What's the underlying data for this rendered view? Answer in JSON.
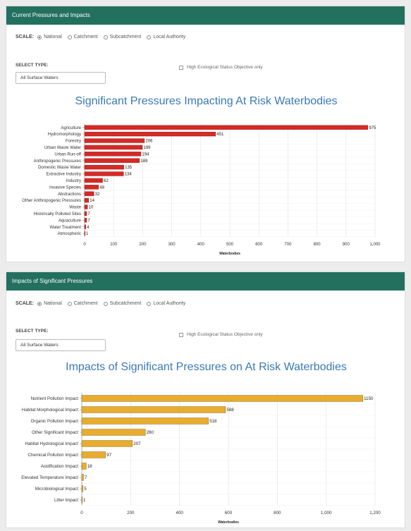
{
  "panel1": {
    "header": "Current Pressures and Impacts",
    "scale_label": "SCALE:",
    "scale_options": [
      "National",
      "Catchment",
      "Subcatchment",
      "Local Authority"
    ],
    "select_type_label": "SELECT TYPE:",
    "select_value": "All Surface Waters",
    "hes_label": "High Ecological Status Objective only"
  },
  "panel2": {
    "header": "Impacts of Significant Pressures",
    "scale_label": "SCALE:",
    "scale_options": [
      "National",
      "Catchment",
      "Subcatchment",
      "Local Authority"
    ],
    "select_type_label": "SELECT TYPE:",
    "select_value": "All Surface Waters",
    "hes_label": "High Ecological Status Objective only"
  },
  "colors": {
    "header": "#23705f",
    "title": "#3a79b6",
    "bar1": "#d42a26",
    "bar2": "#e8ad2e"
  },
  "chart_data": [
    {
      "type": "bar",
      "orientation": "horizontal",
      "title": "Significant Pressures Impacting At Risk Waterbodies",
      "xlabel": "Waterbodies",
      "categories": [
        "Agriculture",
        "Hydromorphology",
        "Forestry",
        "Urban Waste Water",
        "Urban Run-off",
        "Anthropogenic Pressures",
        "Domestic Waste Water",
        "Extractive Industry",
        "Industry",
        "Invasive Species",
        "Abstractions",
        "Other Anthropogenic Pressures",
        "Waste",
        "Historically Polluted Sites",
        "Aquaculture",
        "Water Treatment",
        "Atmospheric"
      ],
      "values": [
        975,
        451,
        206,
        199,
        194,
        189,
        135,
        134,
        62,
        48,
        32,
        14,
        10,
        7,
        7,
        4,
        1
      ],
      "xlim": [
        0,
        1000
      ],
      "ticks": [
        0,
        100,
        200,
        300,
        400,
        500,
        600,
        700,
        800,
        900,
        1000
      ],
      "tick_labels": [
        "0",
        "100",
        "200",
        "300",
        "400",
        "500",
        "600",
        "700",
        "800",
        "900",
        "1,000"
      ],
      "grid": true
    },
    {
      "type": "bar",
      "orientation": "horizontal",
      "title": "Impacts of Significant Pressures on At Risk Waterbodies",
      "xlabel": "Waterbodies",
      "categories": [
        "Nutrient Pollution Impact",
        "Habitat Morphological Impact",
        "Organic Pollution Impact",
        "Other Significant Impact",
        "Habitat Hydrological Impact",
        "Chemical Pollution Impact",
        "Acidification Impact",
        "Elevated Temperature Impact",
        "Microbiological Impact",
        "Litter Impact"
      ],
      "values": [
        1150,
        588,
        518,
        260,
        207,
        97,
        18,
        7,
        5,
        1
      ],
      "xlim": [
        0,
        1200
      ],
      "ticks": [
        0,
        200,
        400,
        600,
        800,
        1000,
        1200
      ],
      "tick_labels": [
        "0",
        "200",
        "400",
        "600",
        "800",
        "1,000",
        "1,200"
      ],
      "grid": true
    }
  ]
}
